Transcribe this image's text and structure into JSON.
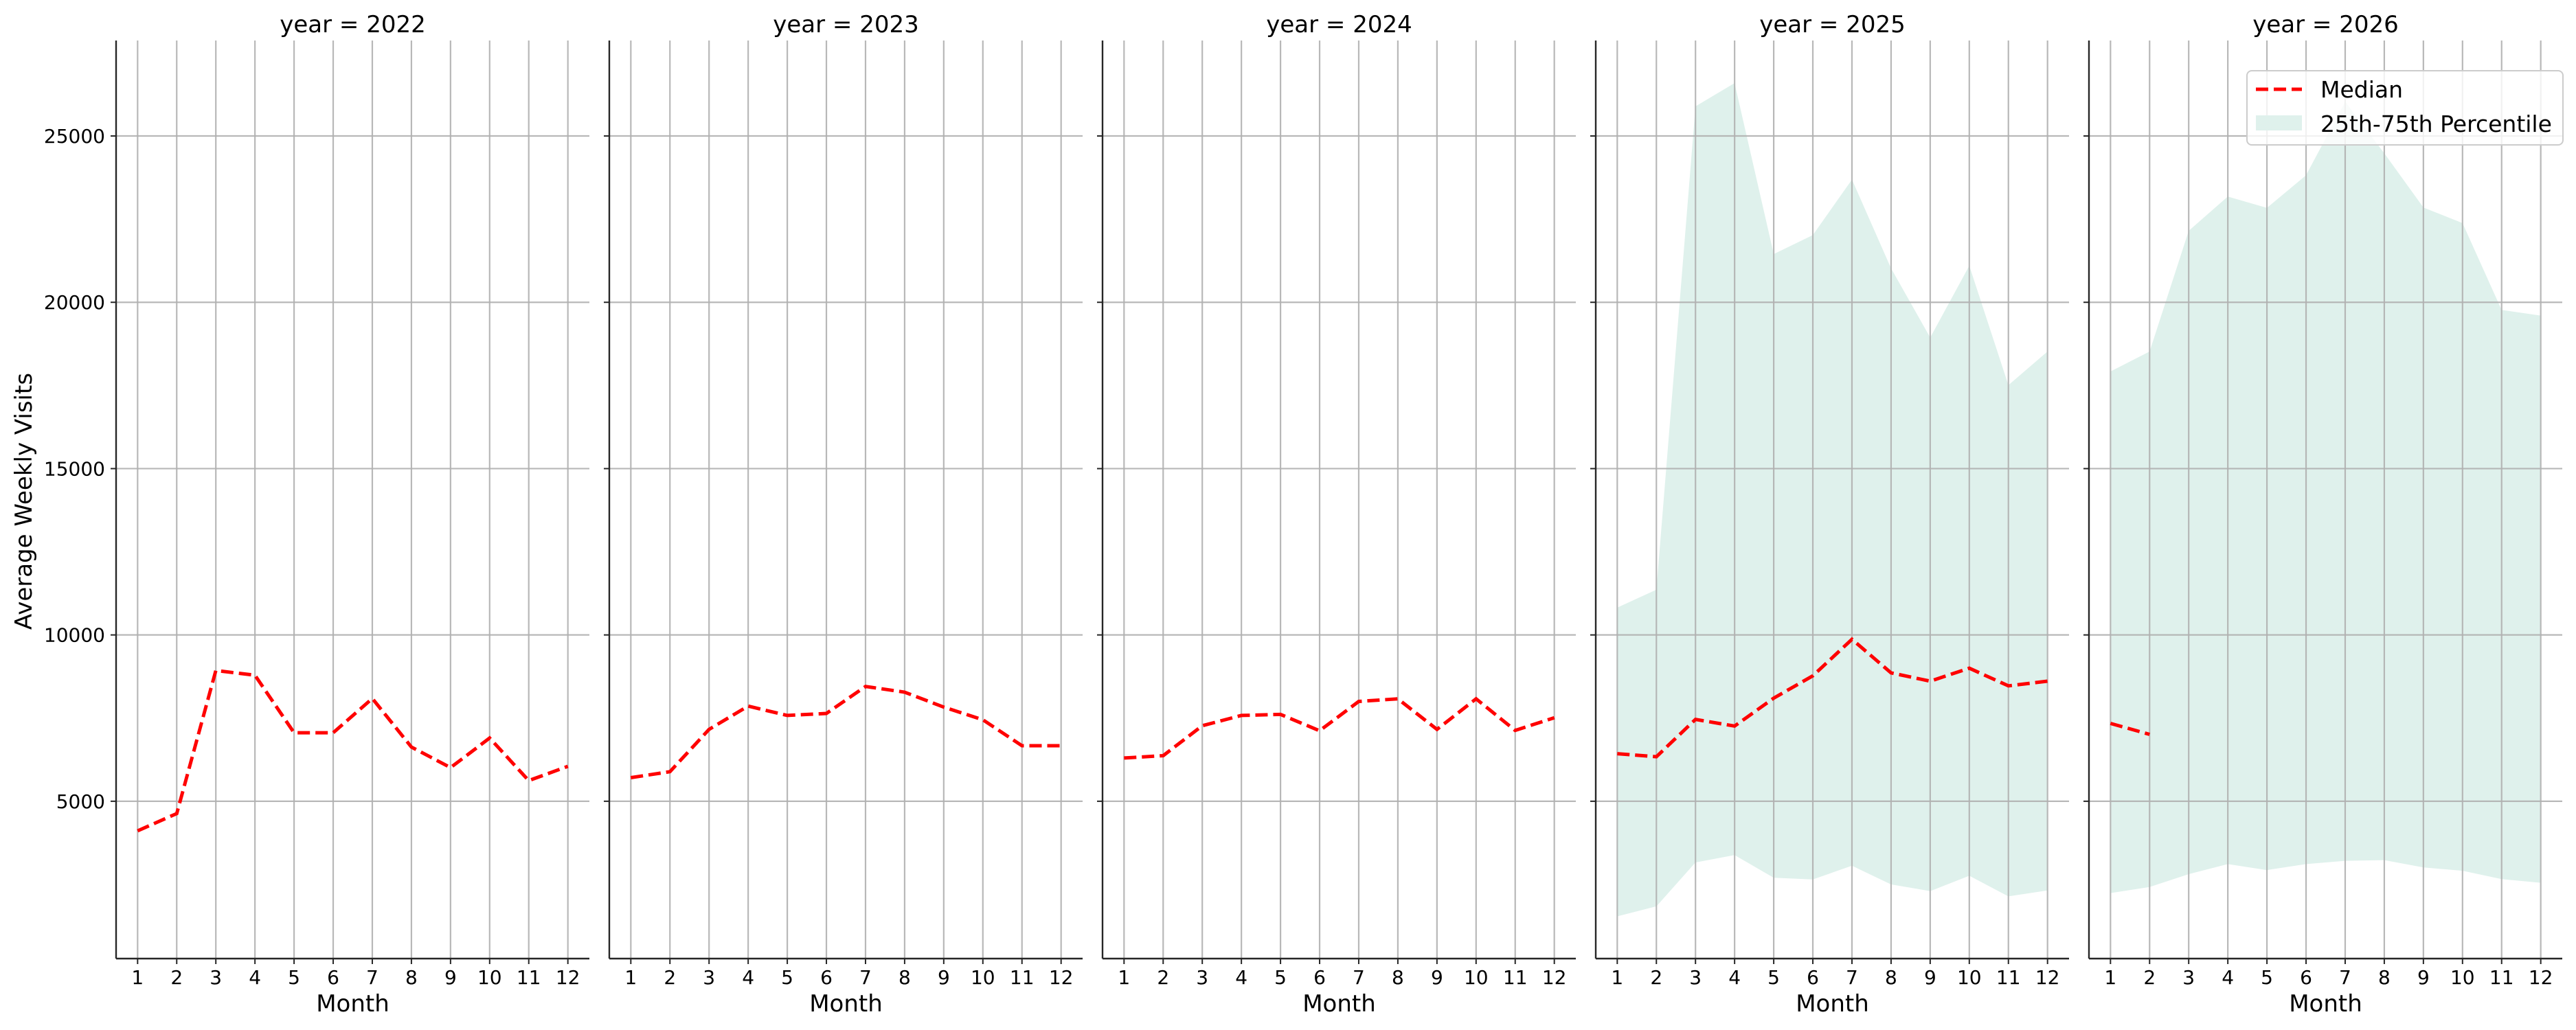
{
  "chart_data": {
    "type": "line",
    "layout": "facet-grid 1x5 (shared y-axis)",
    "facet_variable": "year",
    "panel_titles": [
      "year = 2022",
      "year = 2023",
      "year = 2024",
      "year = 2025",
      "year = 2026"
    ],
    "xlabel": "Month",
    "ylabel": "Average Weekly Visits",
    "x": [
      1,
      2,
      3,
      4,
      5,
      6,
      7,
      8,
      9,
      10,
      11,
      12
    ],
    "x_tick_labels": [
      "1",
      "2",
      "3",
      "4",
      "5",
      "6",
      "7",
      "8",
      "9",
      "10",
      "11",
      "12"
    ],
    "y_ticks": [
      5000,
      10000,
      15000,
      20000,
      25000
    ],
    "y_tick_labels": [
      "5000",
      "10000",
      "15000",
      "20000",
      "25000"
    ],
    "ylim": [
      270,
      27870
    ],
    "xlim": [
      0.45,
      12.55
    ],
    "grid": true,
    "legend": {
      "position": "upper right (last panel)",
      "entries": [
        {
          "label": "Median",
          "style": "dashed-line",
          "color": "#ff0000"
        },
        {
          "label": "25th-75th Percentile",
          "style": "filled-area",
          "color": "#dff1ec"
        }
      ]
    },
    "colors": {
      "median": "#ff0000",
      "band": "#dff1ec",
      "grid": "#b0b0b0",
      "axis": "#262626"
    },
    "panels": [
      {
        "year": 2022,
        "median": [
          4110,
          4630,
          8930,
          8790,
          7060,
          7060,
          8090,
          6630,
          6010,
          6900,
          5620,
          6050
        ],
        "p25": null,
        "p75": null
      },
      {
        "year": 2023,
        "median": [
          5710,
          5890,
          7160,
          7860,
          7580,
          7640,
          8450,
          8280,
          7830,
          7450,
          6670,
          6670
        ],
        "p25": null,
        "p75": null
      },
      {
        "year": 2024,
        "median": [
          6300,
          6370,
          7270,
          7580,
          7610,
          7120,
          8000,
          8080,
          7160,
          8080,
          7130,
          7510
        ],
        "p25": null,
        "p75": null
      },
      {
        "year": 2025,
        "median": [
          6430,
          6340,
          7460,
          7260,
          8100,
          8770,
          9870,
          8860,
          8610,
          9000,
          8470,
          8610
        ],
        "p25": [
          1540,
          1840,
          3160,
          3380,
          2700,
          2650,
          3060,
          2500,
          2300,
          2760,
          2140,
          2320
        ],
        "p75": [
          10820,
          11360,
          25890,
          26590,
          21450,
          22020,
          23690,
          21020,
          18940,
          21100,
          17510,
          18520
        ]
      },
      {
        "year": 2026,
        "median": [
          7340,
          7010,
          null,
          null,
          null,
          null,
          null,
          null,
          null,
          null,
          null,
          null
        ],
        "p25": [
          2240,
          2420,
          2810,
          3110,
          2930,
          3110,
          3210,
          3230,
          3010,
          2910,
          2660,
          2550
        ],
        "p75": [
          17920,
          18520,
          22150,
          23180,
          22840,
          23820,
          26030,
          24480,
          22850,
          22380,
          19770,
          19600
        ]
      }
    ]
  }
}
